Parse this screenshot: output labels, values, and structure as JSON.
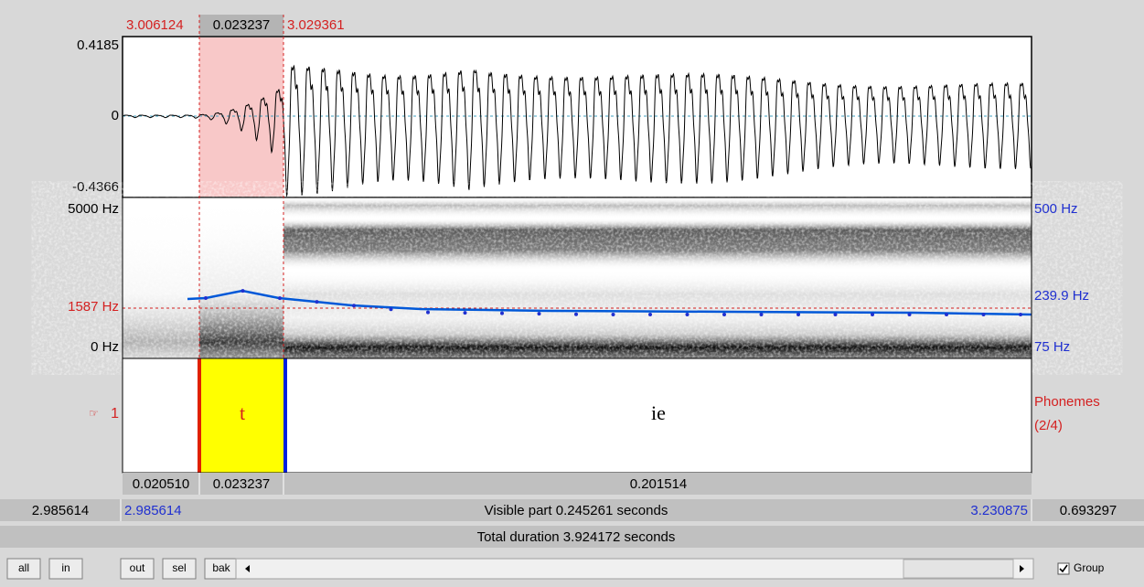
{
  "selection": {
    "start": "3.006124",
    "duration": "0.023237",
    "end": "3.029361"
  },
  "waveform": {
    "max": "0.4185",
    "zero": "0",
    "min": "-0.4366"
  },
  "spectrogram": {
    "top": "5000 Hz",
    "cursor": "1587 Hz",
    "bottom": "0 Hz"
  },
  "pitch": {
    "top": "500 Hz",
    "value": "239.9 Hz",
    "bottom": "75 Hz"
  },
  "tier": {
    "number": "1",
    "name": "Phonemes",
    "count": "(2/4)",
    "intervals": [
      {
        "duration": "0.020510"
      },
      {
        "text": "t",
        "duration": "0.023237"
      },
      {
        "text": "ie",
        "duration": "0.201514"
      }
    ]
  },
  "window": {
    "left": "2.985614",
    "visible_start": "2.985614",
    "visible": "Visible part 0.245261 seconds",
    "visible_end": "3.230875",
    "right": "0.693297",
    "total": "Total duration 3.924172 seconds"
  },
  "buttons": [
    "all",
    "in",
    "out",
    "sel",
    "bak"
  ],
  "group": "Group"
}
